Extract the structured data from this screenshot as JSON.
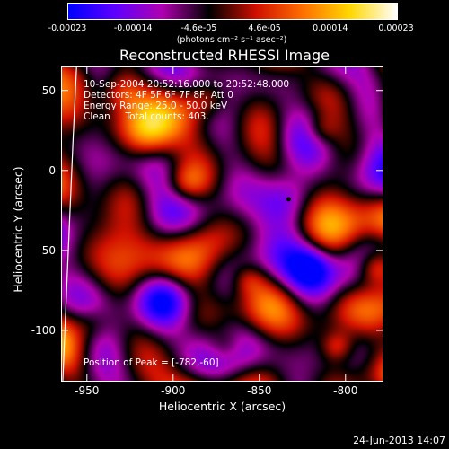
{
  "colorbar": {
    "ticks": [
      "-0.00023",
      "-0.00014",
      "-4.6e-05",
      "4.6e-05",
      "0.00014",
      "0.00023"
    ],
    "units": "(photons cm⁻² s⁻¹ asec⁻²)",
    "range": [
      -0.00023,
      0.00023
    ],
    "colors": [
      "#0000ff",
      "#6000ff",
      "#b000b0",
      "#000000",
      "#d01000",
      "#ff7000",
      "#ffd800",
      "#ffffff"
    ]
  },
  "title": "Reconstructed RHESSI Image",
  "info": {
    "line1": "10-Sep-2004 20:52:16.000 to 20:52:48.000",
    "line2": "Detectors: 4F 5F 6F 7F 8F, Att 0",
    "line3": "Energy Range: 25.0 - 50.0 keV",
    "line4": "Clean     Total counts: 403.",
    "peak": "Position of Peak = [-782,-60]"
  },
  "footer": {
    "timestamp": "24-Jun-2013 14:07"
  },
  "chart_data": {
    "type": "heatmap",
    "title": "Reconstructed RHESSI Image",
    "xlabel": "Heliocentric X (arcsec)",
    "ylabel": "Heliocentric Y (arcsec)",
    "xlim": [
      -965,
      -778
    ],
    "ylim": [
      -132,
      65
    ],
    "x_ticks": [
      -950,
      -900,
      -850,
      -800
    ],
    "y_ticks": [
      50,
      0,
      -50,
      -100
    ],
    "x_tick_labels": [
      "-950",
      "-900",
      "-850",
      "-800"
    ],
    "y_tick_labels": [
      "50",
      "0",
      "-50",
      "-100"
    ],
    "peak_position": [
      -782,
      -60
    ],
    "marker": [
      -833,
      -18
    ],
    "limb_curve": [
      [
        -956,
        65
      ],
      [
        -958,
        20
      ],
      [
        -960,
        -30
      ],
      [
        -962,
        -80
      ],
      [
        -964,
        -132
      ]
    ]
  }
}
